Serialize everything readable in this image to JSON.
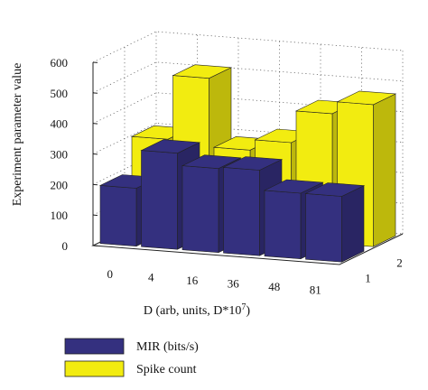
{
  "chart_data": {
    "type": "bar",
    "categories": [
      "0",
      "4",
      "16",
      "36",
      "48",
      "81"
    ],
    "depth_categories": [
      "1",
      "2"
    ],
    "series": [
      {
        "name": "MIR (bits/s)",
        "values": [
          190,
          315,
          275,
          280,
          215,
          215
        ],
        "color": "#34307f"
      },
      {
        "name": "Spike count",
        "values": [
          300,
          510,
          285,
          320,
          425,
          465
        ],
        "color": "#f2ec10"
      }
    ],
    "xlabel": "D (arb, units, D*10",
    "xlabel_sup": "7",
    "xlabel_close": ")",
    "ylabel": "Experiment parameter value",
    "yticks": [
      "0",
      "100",
      "200",
      "300",
      "400",
      "500",
      "600"
    ],
    "ylim": [
      0,
      600
    ],
    "grid": true,
    "legend_position": "bottom-left"
  }
}
